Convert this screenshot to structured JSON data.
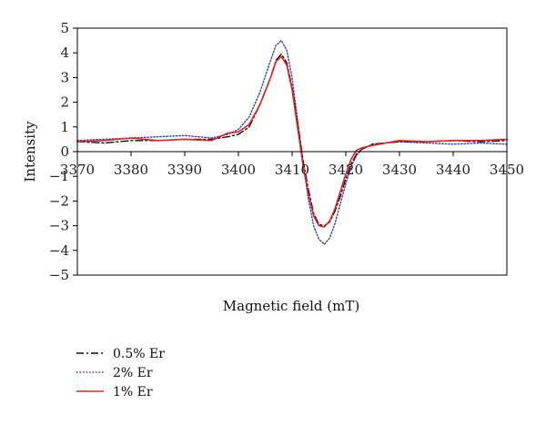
{
  "chart_data": {
    "type": "line",
    "xlabel": "Magnetic field (mT)",
    "ylabel": "Intensity",
    "xlim": [
      3370,
      3450
    ],
    "ylim": [
      -5,
      5
    ],
    "x_ticks": [
      "3370",
      "3380",
      "3390",
      "3400",
      "3410",
      "3420",
      "3430",
      "3440",
      "3450"
    ],
    "y_ticks": [
      "5",
      "4",
      "3",
      "2",
      "1",
      "0",
      "−1",
      "−2",
      "−3",
      "−4",
      "−5"
    ],
    "grid": false,
    "legend_position": "bottom-left",
    "series": [
      {
        "name": "0.5% Er",
        "color": "#111111",
        "style": "dash-dot",
        "x": [
          3370,
          3375,
          3380,
          3385,
          3390,
          3395,
          3398,
          3400,
          3402,
          3404,
          3406,
          3407,
          3408,
          3409,
          3410,
          3411,
          3412,
          3413,
          3414,
          3415,
          3416,
          3417,
          3418,
          3419,
          3420,
          3421,
          3422,
          3423,
          3425,
          3430,
          3435,
          3440,
          3445,
          3450
        ],
        "y": [
          0.4,
          0.35,
          0.45,
          0.45,
          0.5,
          0.5,
          0.6,
          0.7,
          1.0,
          1.9,
          3.0,
          3.7,
          3.95,
          3.6,
          2.6,
          1.2,
          -0.3,
          -1.5,
          -2.5,
          -2.95,
          -3.0,
          -2.85,
          -2.4,
          -1.8,
          -1.1,
          -0.5,
          -0.1,
          0.1,
          0.3,
          0.4,
          0.4,
          0.45,
          0.4,
          0.45
        ]
      },
      {
        "name": "2% Er",
        "color": "#3344cc",
        "style": "dotted",
        "x": [
          3370,
          3375,
          3380,
          3385,
          3390,
          3395,
          3398,
          3400,
          3402,
          3404,
          3406,
          3407,
          3408,
          3409,
          3410,
          3411,
          3412,
          3413,
          3414,
          3415,
          3416,
          3417,
          3418,
          3419,
          3420,
          3421,
          3422,
          3423,
          3425,
          3430,
          3435,
          3440,
          3445,
          3450
        ],
        "y": [
          0.45,
          0.5,
          0.55,
          0.6,
          0.65,
          0.55,
          0.7,
          0.9,
          1.4,
          2.4,
          3.7,
          4.3,
          4.5,
          4.1,
          3.0,
          1.3,
          -0.4,
          -1.9,
          -3.0,
          -3.55,
          -3.75,
          -3.5,
          -2.9,
          -2.1,
          -1.3,
          -0.6,
          -0.15,
          0.1,
          0.3,
          0.4,
          0.35,
          0.3,
          0.35,
          0.3
        ]
      },
      {
        "name": "1% Er",
        "color": "#e8221b",
        "style": "solid",
        "x": [
          3370,
          3375,
          3380,
          3385,
          3390,
          3395,
          3398,
          3400,
          3402,
          3404,
          3406,
          3407,
          3408,
          3409,
          3410,
          3411,
          3412,
          3413,
          3414,
          3415,
          3416,
          3417,
          3418,
          3419,
          3420,
          3421,
          3422,
          3423,
          3425,
          3430,
          3435,
          3440,
          3445,
          3450
        ],
        "y": [
          0.4,
          0.45,
          0.55,
          0.45,
          0.5,
          0.45,
          0.75,
          0.8,
          1.1,
          1.9,
          3.0,
          3.65,
          3.85,
          3.5,
          2.5,
          1.0,
          -0.5,
          -1.7,
          -2.6,
          -3.0,
          -3.05,
          -2.8,
          -2.3,
          -1.6,
          -0.9,
          -0.3,
          0.05,
          0.15,
          0.25,
          0.45,
          0.4,
          0.45,
          0.45,
          0.5
        ]
      }
    ]
  }
}
